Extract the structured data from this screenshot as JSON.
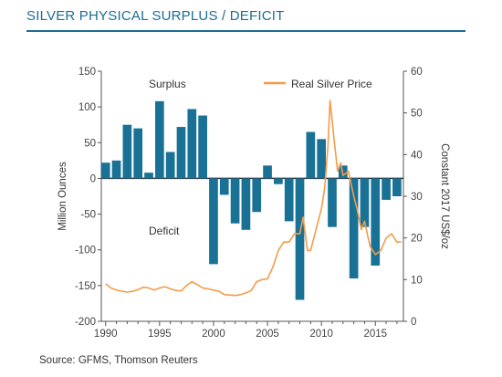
{
  "header": {
    "title": "SILVER PHYSICAL SURPLUS / DEFICIT"
  },
  "footer": {
    "source": "Source: GFMS, Thomson Reuters"
  },
  "colors": {
    "bar": "#1a7196",
    "price": "#f39c4a",
    "title": "#1a6d96"
  },
  "chart_data": {
    "type": "bar",
    "ylabel_left": "Million Ounces",
    "ylabel_right": "Constant 2017 US$/oz",
    "ylim_left": [
      -200,
      150
    ],
    "ylim_right": [
      0,
      60
    ],
    "yticks_left": [
      "150",
      "100",
      "50",
      "0",
      "-50",
      "-100",
      "-150",
      "-200"
    ],
    "yticks_right": [
      "60",
      "50",
      "40",
      "30",
      "20",
      "10",
      "0"
    ],
    "xticks": [
      "1990",
      "1995",
      "2000",
      "2005",
      "2010",
      "2015"
    ],
    "annotations": {
      "surplus": "Surplus",
      "deficit": "Deficit"
    },
    "legend": {
      "label": "Real Silver Price",
      "position": "top-right"
    },
    "grid": false,
    "series": [
      {
        "name": "Surplus / Deficit",
        "kind": "bar",
        "axis": "left",
        "x": [
          1990,
          1991,
          1992,
          1993,
          1994,
          1995,
          1996,
          1997,
          1998,
          1999,
          2000,
          2001,
          2002,
          2003,
          2004,
          2005,
          2006,
          2007,
          2008,
          2009,
          2010,
          2011,
          2012,
          2013,
          2014,
          2015,
          2016,
          2017
        ],
        "values": [
          22,
          25,
          75,
          70,
          8,
          108,
          37,
          72,
          97,
          88,
          -120,
          -23,
          -63,
          -72,
          -47,
          18,
          -8,
          -60,
          -170,
          65,
          55,
          -68,
          18,
          -140,
          -68,
          -122,
          -30,
          -25
        ]
      },
      {
        "name": "Real Silver Price",
        "kind": "line",
        "axis": "right",
        "x": [
          1990,
          1990.5,
          1991,
          1991.5,
          1992,
          1992.5,
          1993,
          1993.5,
          1994,
          1994.5,
          1995,
          1995.5,
          1996,
          1996.5,
          1997,
          1997.5,
          1998,
          1998.5,
          1999,
          1999.5,
          2000,
          2000.5,
          2001,
          2001.5,
          2002,
          2002.5,
          2003,
          2003.5,
          2004,
          2004.5,
          2005,
          2005.5,
          2006,
          2006.5,
          2007,
          2007.5,
          2008,
          2008.3,
          2008.7,
          2009,
          2009.5,
          2010,
          2010.3,
          2010.6,
          2010.8,
          2011,
          2011.2,
          2011.5,
          2011.8,
          2012,
          2012.5,
          2013,
          2013.3,
          2013.7,
          2014,
          2014.5,
          2015,
          2015.5,
          2016,
          2016.5,
          2017,
          2017.4
        ],
        "values": [
          9,
          8,
          7.5,
          7.2,
          7,
          7.2,
          7.6,
          8.2,
          8,
          7.5,
          8,
          8.3,
          7.8,
          7.4,
          7.3,
          8.6,
          9.5,
          8.8,
          8,
          7.8,
          7.5,
          7.2,
          6.4,
          6.3,
          6.2,
          6.4,
          6.8,
          7.4,
          9.5,
          10,
          10.2,
          13,
          17,
          19,
          19,
          21,
          21,
          25,
          17,
          17,
          22,
          27,
          32,
          42,
          53,
          48,
          43,
          36,
          38,
          35,
          36,
          30,
          27,
          22,
          24,
          18,
          16,
          17,
          20,
          21,
          19,
          19
        ]
      }
    ]
  }
}
